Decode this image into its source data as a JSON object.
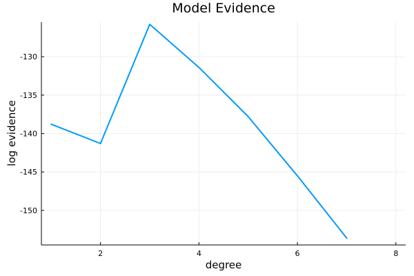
{
  "chart_data": {
    "type": "line",
    "title": "Model Evidence",
    "xlabel": "degree",
    "ylabel": "log evidence",
    "xlim": [
      0.8,
      8.2
    ],
    "ylim": [
      -154.5,
      -125.5
    ],
    "xticks": [
      2,
      4,
      6,
      8
    ],
    "yticks": [
      -130,
      -135,
      -140,
      -145,
      -150
    ],
    "grid": true,
    "legend": "none",
    "series": [
      {
        "color": "#009af9",
        "x": [
          1,
          2,
          3,
          4,
          5,
          6,
          7
        ],
        "y": [
          -138.8,
          -141.3,
          -125.8,
          -131.4,
          -137.8,
          -145.5,
          -153.6
        ]
      }
    ]
  }
}
